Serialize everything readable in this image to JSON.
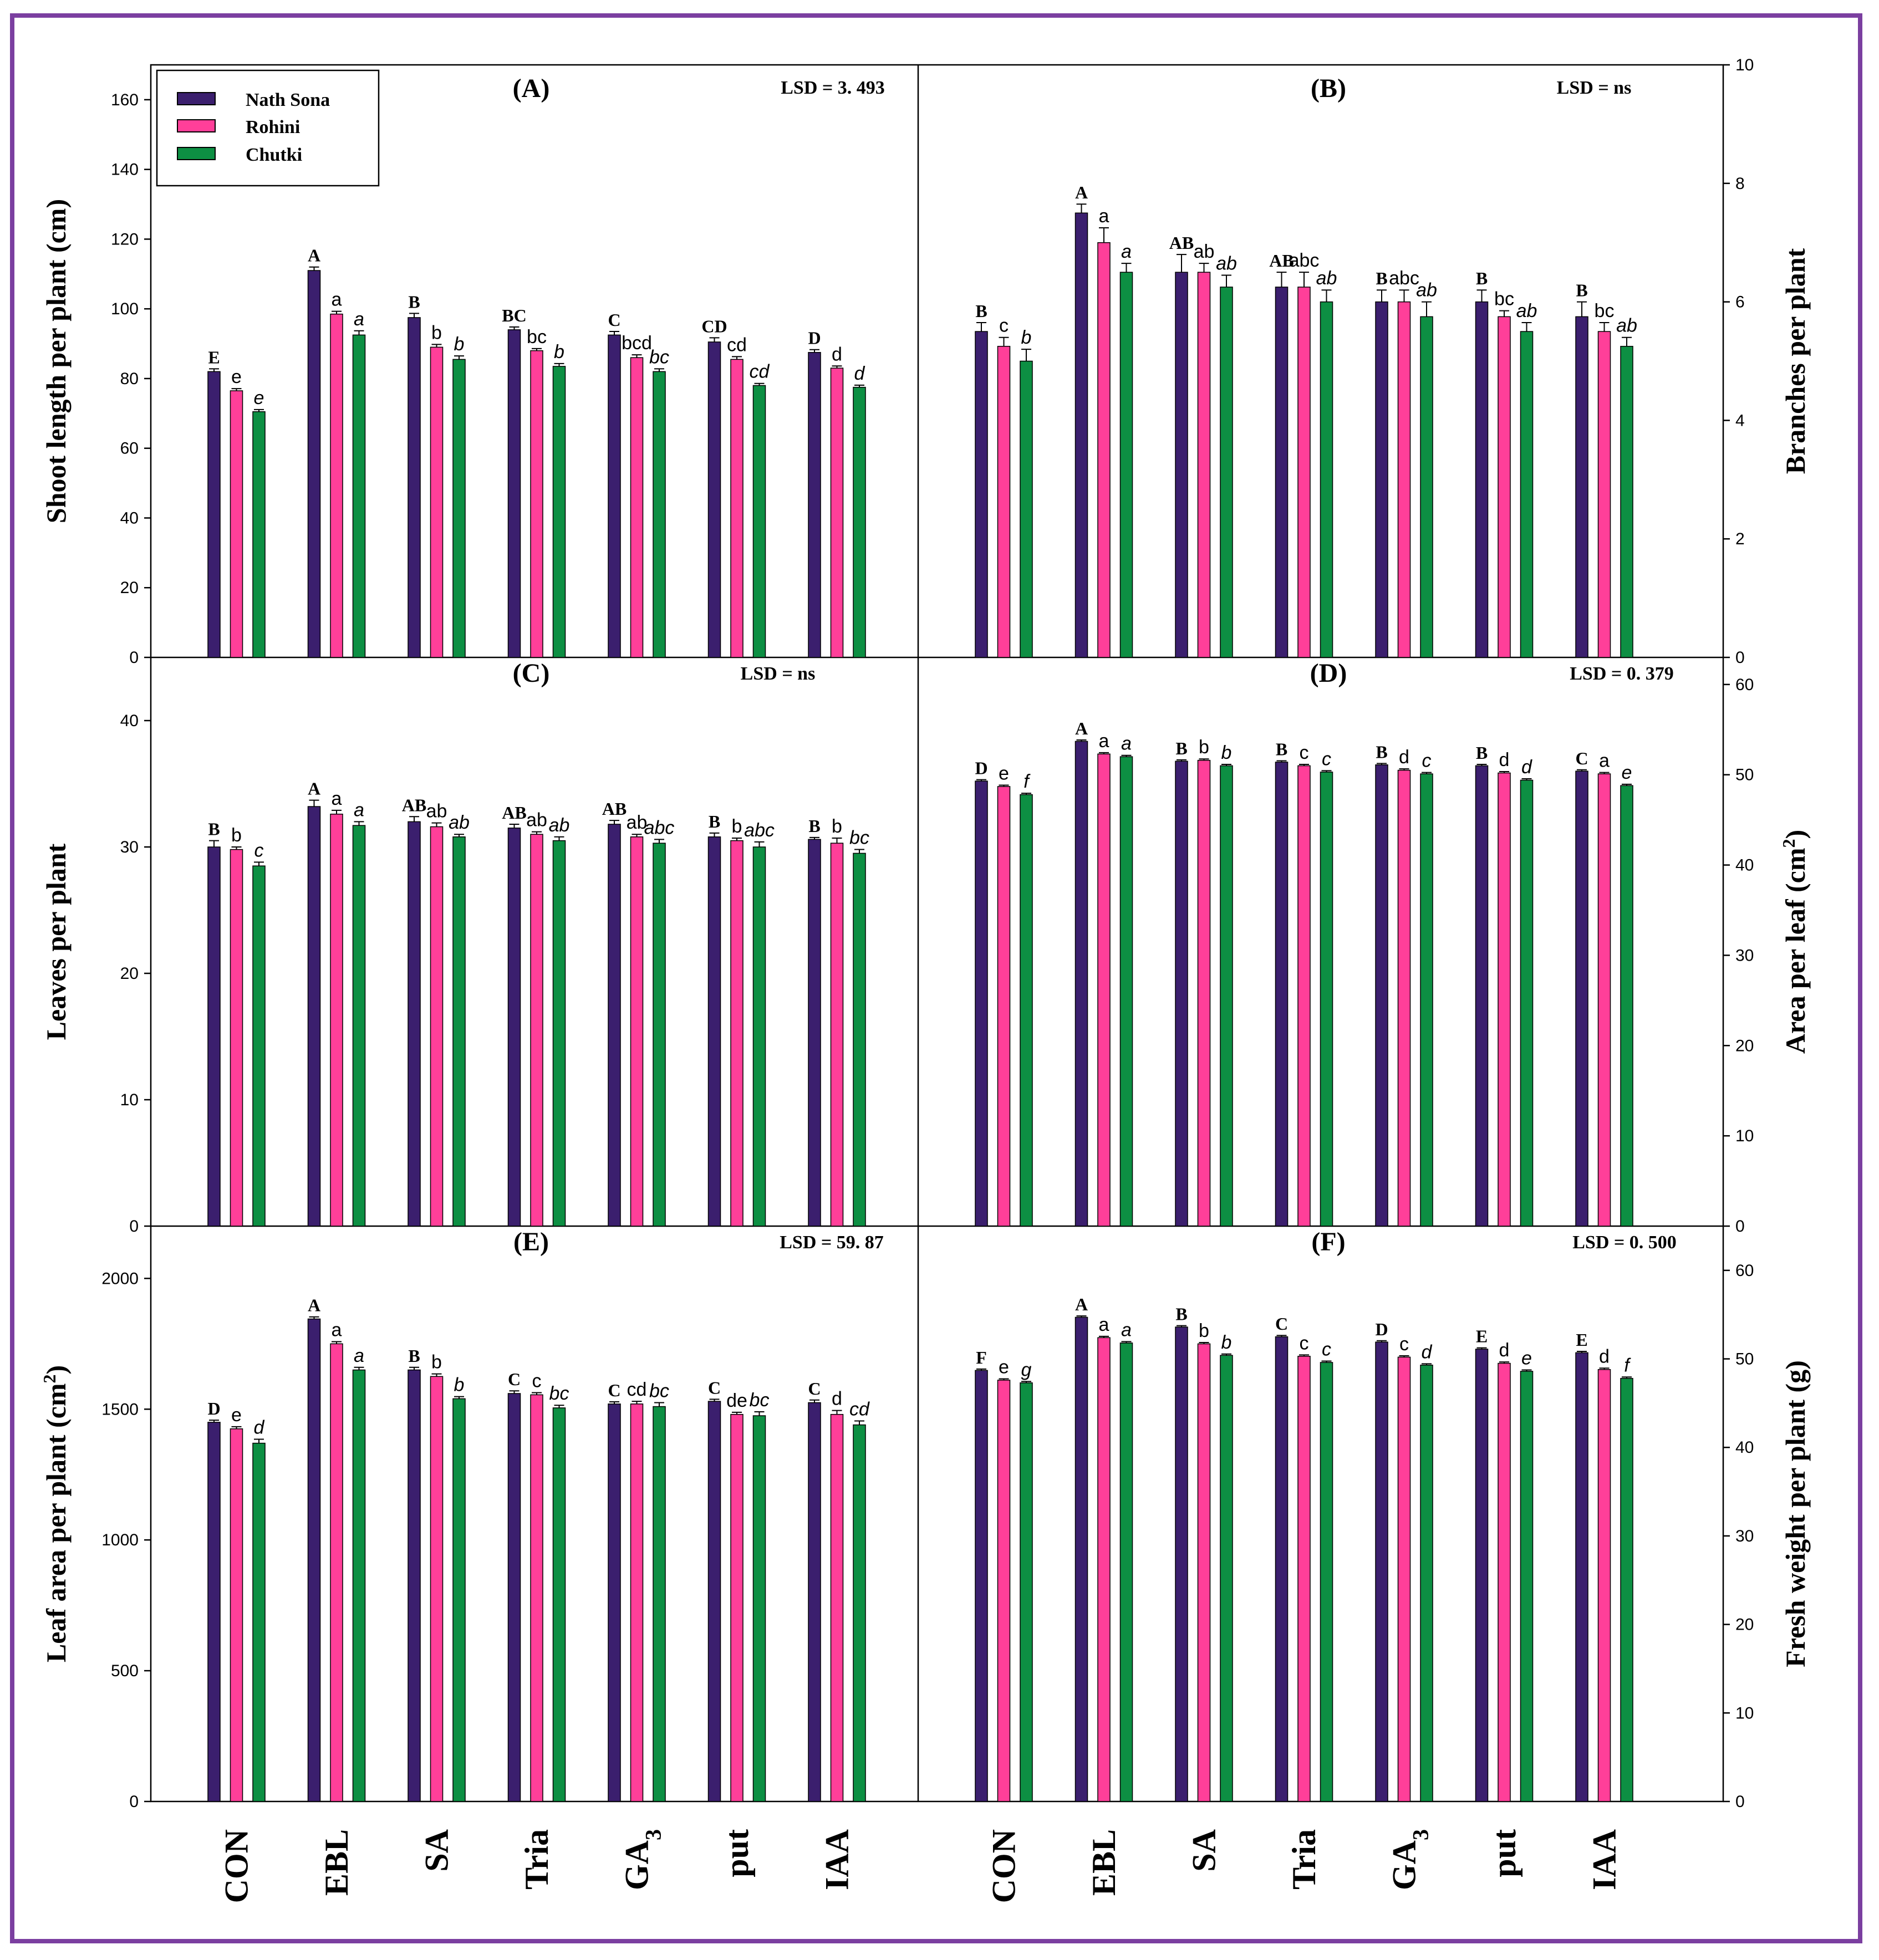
{
  "colors": {
    "series": [
      "#3b1f6e",
      "#ff3f99",
      "#0d8f43"
    ],
    "frame": "#7b3fa0"
  },
  "chart_data": [
    {
      "panel": "A",
      "type": "bar",
      "title": "(A)",
      "lsd": "LSD = 3. 493",
      "ylabel": "Shoot length per plant (cm)",
      "yaxis_side": "left",
      "ylim": [
        0,
        170
      ],
      "yticks": [
        "0",
        "20",
        "40",
        "60",
        "80",
        "100",
        "120",
        "140",
        "160"
      ],
      "categories": [
        "CON",
        "EBL",
        "SA",
        "Tria",
        "GA3",
        "put",
        "IAA"
      ],
      "series": [
        {
          "name": "Nath Sona",
          "values": [
            82.0,
            111.0,
            97.5,
            94.0,
            92.5,
            90.5,
            87.5
          ],
          "errors": [
            0.8,
            1.0,
            1.2,
            0.8,
            1.0,
            1.2,
            0.8
          ]
        },
        {
          "name": "Rohini",
          "values": [
            76.5,
            98.5,
            89.0,
            88.0,
            86.0,
            85.5,
            83.0
          ],
          "errors": [
            0.6,
            0.8,
            0.8,
            0.6,
            0.8,
            0.8,
            0.6
          ]
        },
        {
          "name": "Chutki",
          "values": [
            70.5,
            92.5,
            85.5,
            83.5,
            82.0,
            78.0,
            77.5
          ],
          "errors": [
            0.6,
            1.2,
            1.0,
            0.8,
            0.8,
            0.6,
            0.6
          ]
        }
      ],
      "letters": [
        [
          "E",
          "e",
          "e"
        ],
        [
          "A",
          "a",
          "a"
        ],
        [
          "B",
          "b",
          "b"
        ],
        [
          "BC",
          "bc",
          "b"
        ],
        [
          "C",
          "bcd",
          "bc"
        ],
        [
          "CD",
          "cd",
          "cd"
        ],
        [
          "D",
          "d",
          "d"
        ]
      ]
    },
    {
      "panel": "B",
      "type": "bar",
      "title": "(B)",
      "lsd": "LSD = ns",
      "ylabel": "Branches per plant",
      "yaxis_side": "right",
      "ylim": [
        0,
        10
      ],
      "yticks": [
        "0",
        "2",
        "4",
        "6",
        "8",
        "10"
      ],
      "categories": [
        "CON",
        "EBL",
        "SA",
        "Tria",
        "GA3",
        "put",
        "IAA"
      ],
      "series": [
        {
          "name": "Nath Sona",
          "values": [
            5.5,
            7.5,
            6.5,
            6.25,
            6.0,
            6.0,
            5.75
          ],
          "errors": [
            0.15,
            0.15,
            0.3,
            0.25,
            0.2,
            0.2,
            0.25
          ]
        },
        {
          "name": "Rohini",
          "values": [
            5.25,
            7.0,
            6.5,
            6.25,
            6.0,
            5.75,
            5.5
          ],
          "errors": [
            0.15,
            0.25,
            0.15,
            0.25,
            0.2,
            0.1,
            0.15
          ]
        },
        {
          "name": "Chutki",
          "values": [
            5.0,
            6.5,
            6.25,
            6.0,
            5.75,
            5.5,
            5.25
          ],
          "errors": [
            0.2,
            0.15,
            0.2,
            0.2,
            0.25,
            0.15,
            0.15
          ]
        }
      ],
      "letters": [
        [
          "B",
          "c",
          "b"
        ],
        [
          "A",
          "a",
          "a"
        ],
        [
          "AB",
          "ab",
          "ab"
        ],
        [
          "AB",
          "abc",
          "ab"
        ],
        [
          "B",
          "abc",
          "ab"
        ],
        [
          "B",
          "bc",
          "ab"
        ],
        [
          "B",
          "bc",
          "ab"
        ]
      ]
    },
    {
      "panel": "C",
      "type": "bar",
      "title": "(C)",
      "lsd": "LSD = ns",
      "ylabel": "Leaves per plant",
      "yaxis_side": "left",
      "ylim": [
        0,
        45
      ],
      "yticks": [
        "0",
        "10",
        "20",
        "30",
        "40"
      ],
      "categories": [
        "CON",
        "EBL",
        "SA",
        "Tria",
        "GA3",
        "put",
        "IAA"
      ],
      "series": [
        {
          "name": "Nath Sona",
          "values": [
            30.0,
            33.2,
            32.0,
            31.5,
            31.8,
            30.8,
            30.6
          ],
          "errors": [
            0.5,
            0.5,
            0.4,
            0.3,
            0.3,
            0.3,
            0.15
          ]
        },
        {
          "name": "Rohini",
          "values": [
            29.8,
            32.6,
            31.6,
            31.0,
            30.8,
            30.5,
            30.3
          ],
          "errors": [
            0.2,
            0.3,
            0.3,
            0.2,
            0.2,
            0.2,
            0.4
          ]
        },
        {
          "name": "Chutki",
          "values": [
            28.5,
            31.7,
            30.8,
            30.5,
            30.3,
            30.0,
            29.5
          ],
          "errors": [
            0.3,
            0.3,
            0.2,
            0.3,
            0.3,
            0.4,
            0.3
          ]
        }
      ],
      "letters": [
        [
          "B",
          "b",
          "c"
        ],
        [
          "A",
          "a",
          "a"
        ],
        [
          "AB",
          "ab",
          "ab"
        ],
        [
          "AB",
          "ab",
          "ab"
        ],
        [
          "AB",
          "ab",
          "abc"
        ],
        [
          "B",
          "b",
          "abc"
        ],
        [
          "B",
          "b",
          "bc"
        ]
      ]
    },
    {
      "panel": "D",
      "type": "bar",
      "title": "(D)",
      "lsd": "LSD = 0. 379",
      "ylabel": "Area per leaf (cm2)",
      "yaxis_side": "right",
      "ylim": [
        0,
        63
      ],
      "yticks": [
        "0",
        "10",
        "20",
        "30",
        "40",
        "50",
        "60"
      ],
      "categories": [
        "CON",
        "EBL",
        "SA",
        "Tria",
        "GA3",
        "put",
        "IAA"
      ],
      "series": [
        {
          "name": "Nath Sona",
          "values": [
            49.3,
            53.7,
            51.5,
            51.4,
            51.1,
            51.0,
            50.4
          ],
          "errors": [
            0.15,
            0.15,
            0.15,
            0.15,
            0.15,
            0.15,
            0.15
          ]
        },
        {
          "name": "Rohini",
          "values": [
            48.7,
            52.3,
            51.6,
            51.0,
            50.5,
            50.2,
            50.1
          ],
          "errors": [
            0.15,
            0.15,
            0.15,
            0.15,
            0.15,
            0.15,
            0.15
          ]
        },
        {
          "name": "Chutki",
          "values": [
            47.8,
            52.0,
            51.0,
            50.3,
            50.1,
            49.4,
            48.8
          ],
          "errors": [
            0.15,
            0.15,
            0.15,
            0.15,
            0.15,
            0.15,
            0.15
          ]
        }
      ],
      "letters": [
        [
          "D",
          "e",
          "f"
        ],
        [
          "A",
          "a",
          "a"
        ],
        [
          "B",
          "b",
          "b"
        ],
        [
          "B",
          "c",
          "c"
        ],
        [
          "B",
          "d",
          "c"
        ],
        [
          "B",
          "d",
          "d"
        ],
        [
          "C",
          "a",
          "e"
        ]
      ]
    },
    {
      "panel": "E",
      "type": "bar",
      "title": "(E)",
      "lsd": "LSD = 59. 87",
      "ylabel": "Leaf area per plant (cm2)",
      "yaxis_side": "left",
      "ylim": [
        0,
        2200
      ],
      "yticks": [
        "0",
        "500",
        "1000",
        "1500",
        "2000"
      ],
      "categories": [
        "CON",
        "EBL",
        "SA",
        "Tria",
        "GA3",
        "put",
        "IAA"
      ],
      "series": [
        {
          "name": "Nath Sona",
          "values": [
            1450,
            1845,
            1650,
            1560,
            1520,
            1530,
            1525
          ],
          "errors": [
            8,
            8,
            10,
            10,
            8,
            8,
            10
          ]
        },
        {
          "name": "Rohini",
          "values": [
            1425,
            1750,
            1625,
            1555,
            1520,
            1480,
            1480
          ],
          "errors": [
            8,
            8,
            10,
            8,
            10,
            8,
            15
          ]
        },
        {
          "name": "Chutki",
          "values": [
            1370,
            1650,
            1540,
            1505,
            1510,
            1475,
            1440
          ],
          "errors": [
            15,
            10,
            8,
            10,
            15,
            15,
            15
          ]
        }
      ],
      "letters": [
        [
          "D",
          "e",
          "d"
        ],
        [
          "A",
          "a",
          "a"
        ],
        [
          "B",
          "b",
          "b"
        ],
        [
          "C",
          "c",
          "bc"
        ],
        [
          "C",
          "cd",
          "bc"
        ],
        [
          "C",
          "de",
          "bc"
        ],
        [
          "C",
          "d",
          "cd"
        ]
      ]
    },
    {
      "panel": "F",
      "type": "bar",
      "title": "(F)",
      "lsd": "LSD = 0. 500",
      "ylabel": "Fresh weight per plant (g)",
      "yaxis_side": "right",
      "ylim": [
        0,
        65
      ],
      "yticks": [
        "0",
        "10",
        "20",
        "30",
        "40",
        "50",
        "60"
      ],
      "categories": [
        "CON",
        "EBL",
        "SA",
        "Tria",
        "GA3",
        "put",
        "IAA"
      ],
      "series": [
        {
          "name": "Nath Sona",
          "values": [
            48.7,
            54.7,
            53.6,
            52.5,
            51.9,
            51.1,
            50.7
          ],
          "errors": [
            0.15,
            0.15,
            0.15,
            0.15,
            0.15,
            0.15,
            0.15
          ]
        },
        {
          "name": "Rohini",
          "values": [
            47.6,
            52.4,
            51.7,
            50.3,
            50.2,
            49.5,
            48.8
          ],
          "errors": [
            0.15,
            0.15,
            0.15,
            0.15,
            0.15,
            0.15,
            0.15
          ]
        },
        {
          "name": "Chutki",
          "values": [
            47.3,
            51.8,
            50.4,
            49.6,
            49.3,
            48.6,
            47.8
          ],
          "errors": [
            0.15,
            0.15,
            0.15,
            0.15,
            0.15,
            0.15,
            0.15
          ]
        }
      ],
      "letters": [
        [
          "F",
          "e",
          "g"
        ],
        [
          "A",
          "a",
          "a"
        ],
        [
          "B",
          "b",
          "b"
        ],
        [
          "C",
          "c",
          "c"
        ],
        [
          "D",
          "c",
          "d"
        ],
        [
          "E",
          "d",
          "e"
        ],
        [
          "E",
          "d",
          "f"
        ]
      ]
    }
  ],
  "legend": {
    "items": [
      "Nath Sona",
      "Rohini",
      "Chutki"
    ]
  },
  "xaxis": {
    "left_labels": [
      "CON",
      "EBL",
      "SA",
      "Tria",
      "GA3",
      "put",
      "IAA"
    ],
    "right_labels": [
      "CON",
      "EBL",
      "SA",
      "Tria",
      "GA3",
      "put",
      "IAA"
    ]
  }
}
